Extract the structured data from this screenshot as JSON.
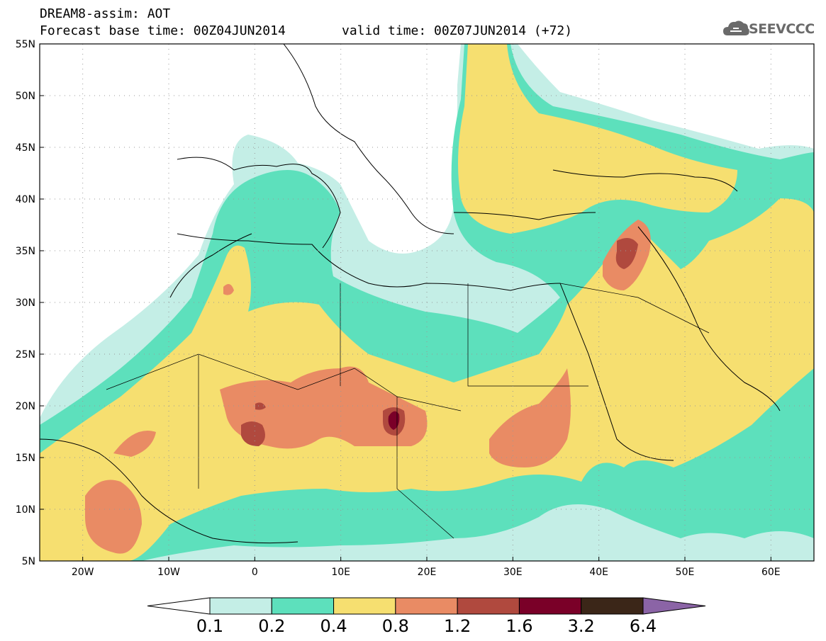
{
  "header": {
    "line1": "DREAM8-assim: AOT",
    "line2": "Forecast base time: 00Z04JUN2014",
    "line3": "valid time: 00Z07JUN2014 (+72)",
    "logo_text": "SEEVCCC"
  },
  "map": {
    "lat_labels": [
      "55N",
      "50N",
      "45N",
      "40N",
      "35N",
      "30N",
      "25N",
      "20N",
      "15N",
      "10N",
      "5N"
    ],
    "lon_labels": [
      "20W",
      "10W",
      "0",
      "10E",
      "20E",
      "30E",
      "40E",
      "50E",
      "60E"
    ],
    "lat_range": [
      5,
      55
    ],
    "lon_range": [
      -25,
      65
    ],
    "grid": "dotted"
  },
  "colorbar": {
    "labels": [
      "0.1",
      "0.2",
      "0.4",
      "0.8",
      "1.2",
      "1.6",
      "3.2",
      "6.4"
    ],
    "colors": [
      "#ffffff",
      "#c4eee6",
      "#5de0bc",
      "#f6df70",
      "#e98b64",
      "#b0493e",
      "#7a0028",
      "#3b2618",
      "#8b64a6"
    ]
  },
  "legend_levels": {
    "clear": "#ffffff",
    "v01": "#c4eee6",
    "v02": "#5de0bc",
    "v04": "#f6df70",
    "v08": "#e98b64",
    "v12": "#b0493e",
    "v16": "#7a0028"
  }
}
